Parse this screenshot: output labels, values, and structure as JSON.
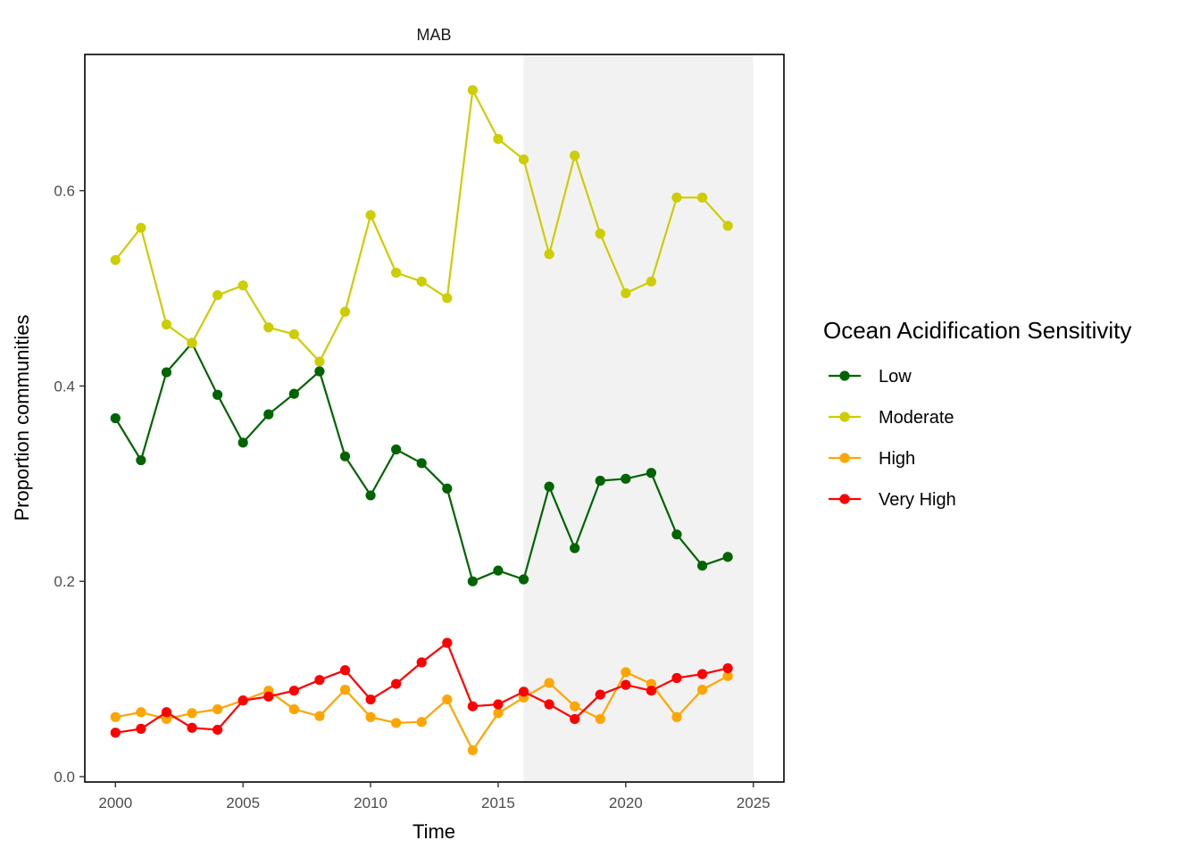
{
  "chart_data": {
    "type": "line",
    "title": "MAB",
    "xlabel": "Time",
    "ylabel": "Proportion communities",
    "xlim": [
      1998.8,
      2026.2
    ],
    "ylim": [
      -0.0055,
      0.7395
    ],
    "xticks": [
      2000,
      2005,
      2010,
      2015,
      2020,
      2025
    ],
    "xtick_labels": [
      "2000",
      "2005",
      "2010",
      "2015",
      "2020",
      "2025"
    ],
    "yticks": [
      0.0,
      0.2,
      0.4,
      0.6
    ],
    "ytick_labels": [
      "0.0",
      "0.2",
      "0.4",
      "0.6"
    ],
    "grid": false,
    "shaded_region": {
      "x_start": 2016,
      "x_end": 2025,
      "color": "#f2f2f2"
    },
    "legend": {
      "title": "Ocean Acidification Sensitivity",
      "placement": "right"
    },
    "x": [
      2000,
      2001,
      2002,
      2003,
      2004,
      2005,
      2006,
      2007,
      2008,
      2009,
      2010,
      2011,
      2012,
      2013,
      2014,
      2015,
      2016,
      2017,
      2018,
      2019,
      2020,
      2021,
      2022,
      2023,
      2024
    ],
    "series": [
      {
        "name": "Low",
        "color": "#006400",
        "values": [
          0.367,
          0.324,
          0.414,
          0.444,
          0.391,
          0.342,
          0.371,
          0.392,
          0.415,
          0.328,
          0.288,
          0.335,
          0.321,
          0.295,
          0.2,
          0.211,
          0.202,
          0.297,
          0.234,
          0.303,
          0.305,
          0.311,
          0.248,
          0.216,
          0.225
        ]
      },
      {
        "name": "Moderate",
        "color": "#cdcd00",
        "values": [
          0.529,
          0.562,
          0.463,
          0.444,
          0.493,
          0.503,
          0.46,
          0.453,
          0.425,
          0.476,
          0.575,
          0.516,
          0.507,
          0.49,
          0.703,
          0.653,
          0.632,
          0.535,
          0.636,
          0.556,
          0.495,
          0.507,
          0.593,
          0.593,
          0.564
        ]
      },
      {
        "name": "High",
        "color": "#ffa500",
        "values": [
          0.061,
          0.066,
          0.059,
          0.065,
          0.069,
          0.078,
          0.088,
          0.069,
          0.062,
          0.089,
          0.061,
          0.055,
          0.056,
          0.079,
          0.027,
          0.065,
          0.081,
          0.096,
          0.072,
          0.059,
          0.107,
          0.095,
          0.061,
          0.089,
          0.103
        ]
      },
      {
        "name": "Very High",
        "color": "#ff0000",
        "values": [
          0.045,
          0.049,
          0.066,
          0.05,
          0.048,
          0.078,
          0.082,
          0.088,
          0.099,
          0.109,
          0.079,
          0.095,
          0.117,
          0.137,
          0.072,
          0.074,
          0.087,
          0.074,
          0.059,
          0.084,
          0.094,
          0.088,
          0.101,
          0.105,
          0.111
        ]
      }
    ]
  }
}
